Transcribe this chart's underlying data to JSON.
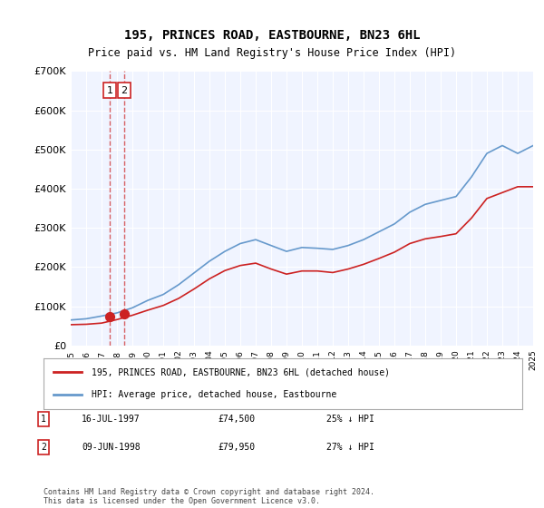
{
  "title": "195, PRINCES ROAD, EASTBOURNE, BN23 6HL",
  "subtitle": "Price paid vs. HM Land Registry's House Price Index (HPI)",
  "hpi_color": "#6699cc",
  "price_color": "#cc2222",
  "background_color": "#f0f4ff",
  "plot_bg": "#f0f4ff",
  "ylim": [
    0,
    700000
  ],
  "yticks": [
    0,
    100000,
    200000,
    300000,
    400000,
    500000,
    600000,
    700000
  ],
  "ytick_labels": [
    "£0",
    "£100K",
    "£200K",
    "£300K",
    "£400K",
    "£500K",
    "£600K",
    "£700K"
  ],
  "sale_dates": [
    "1997-07-16",
    "1998-06-09"
  ],
  "sale_prices": [
    74500,
    79950
  ],
  "sale_pct_hpi": [
    25,
    27
  ],
  "annotation_labels": [
    "1",
    "2"
  ],
  "legend_price_label": "195, PRINCES ROAD, EASTBOURNE, BN23 6HL (detached house)",
  "legend_hpi_label": "HPI: Average price, detached house, Eastbourne",
  "footer": "Contains HM Land Registry data © Crown copyright and database right 2024.\nThis data is licensed under the Open Government Licence v3.0.",
  "table_rows": [
    {
      "num": "1",
      "date": "16-JUL-1997",
      "price": "£74,500",
      "pct": "25% ↓ HPI"
    },
    {
      "num": "2",
      "date": "09-JUN-1998",
      "price": "£79,950",
      "pct": "27% ↓ HPI"
    }
  ],
  "hpi_years": [
    1995,
    1996,
    1997,
    1998,
    1999,
    2000,
    2001,
    2002,
    2003,
    2004,
    2005,
    2006,
    2007,
    2008,
    2009,
    2010,
    2011,
    2012,
    2013,
    2014,
    2015,
    2016,
    2017,
    2018,
    2019,
    2020,
    2021,
    2022,
    2023,
    2024,
    2025
  ],
  "hpi_values": [
    65000,
    68000,
    75000,
    83000,
    96000,
    115000,
    130000,
    155000,
    185000,
    215000,
    240000,
    260000,
    270000,
    255000,
    240000,
    250000,
    248000,
    245000,
    255000,
    270000,
    290000,
    310000,
    340000,
    360000,
    370000,
    380000,
    430000,
    490000,
    510000,
    490000,
    510000
  ],
  "price_paid_years": [
    1995,
    1996,
    1997,
    1998,
    1999,
    2000,
    2001,
    2002,
    2003,
    2004,
    2005,
    2006,
    2007,
    2008,
    2009,
    2010,
    2011,
    2012,
    2013,
    2014,
    2015,
    2016,
    2017,
    2018,
    2019,
    2020,
    2021,
    2022,
    2023,
    2024,
    2025
  ],
  "price_paid_values": [
    53000,
    54000,
    57000,
    66000,
    77000,
    90000,
    102000,
    120000,
    144000,
    170000,
    191000,
    204000,
    210000,
    195000,
    182000,
    190000,
    190000,
    186000,
    195000,
    207000,
    222000,
    238000,
    260000,
    272000,
    278000,
    285000,
    325000,
    375000,
    390000,
    405000,
    405000
  ]
}
